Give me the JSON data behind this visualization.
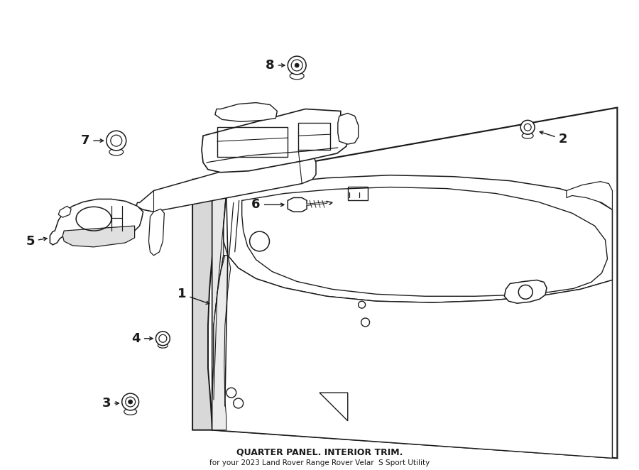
{
  "title": "QUARTER PANEL. INTERIOR TRIM.",
  "subtitle": "for your 2023 Land Rover Range Rover Velar  S Sport Utility",
  "bg_color": "#ffffff",
  "line_color": "#1a1a1a",
  "lw": 1.1
}
